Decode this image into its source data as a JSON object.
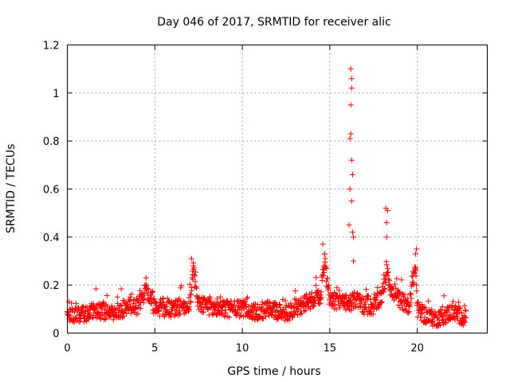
{
  "chart_data": {
    "type": "scatter",
    "title": "Day 046 of 2017, SRMTID for receiver alic",
    "xlabel": "GPS time / hours",
    "ylabel": "SRMTID / TECUs",
    "xlim": [
      0,
      24
    ],
    "ylim": [
      0,
      1.2
    ],
    "x_ticks": [
      0,
      5,
      10,
      15,
      20
    ],
    "x_tick_labels": [
      "0",
      "5",
      "10",
      "15",
      "20"
    ],
    "y_ticks": [
      0,
      0.2,
      0.4,
      0.6,
      0.8,
      1.0,
      1.2
    ],
    "y_tick_labels": [
      "0",
      "0.2",
      "0.4",
      "0.6",
      "0.8",
      "1",
      "1.2"
    ],
    "grid": true,
    "marker": "+",
    "series": [
      {
        "name": "SRMTID",
        "color": "#ff0000",
        "baseline_points": [
          [
            0.0,
            0.08
          ],
          [
            0.5,
            0.07
          ],
          [
            1.0,
            0.08
          ],
          [
            1.5,
            0.09
          ],
          [
            2.0,
            0.09
          ],
          [
            2.5,
            0.08
          ],
          [
            3.0,
            0.09
          ],
          [
            3.5,
            0.12
          ],
          [
            4.0,
            0.11
          ],
          [
            4.5,
            0.18
          ],
          [
            5.0,
            0.1
          ],
          [
            5.5,
            0.1
          ],
          [
            6.0,
            0.1
          ],
          [
            6.5,
            0.11
          ],
          [
            7.0,
            0.12
          ],
          [
            7.2,
            0.26
          ],
          [
            7.5,
            0.12
          ],
          [
            8.0,
            0.11
          ],
          [
            8.5,
            0.11
          ],
          [
            9.0,
            0.1
          ],
          [
            9.5,
            0.1
          ],
          [
            10.0,
            0.1
          ],
          [
            10.5,
            0.09
          ],
          [
            11.0,
            0.09
          ],
          [
            11.5,
            0.1
          ],
          [
            12.0,
            0.09
          ],
          [
            12.5,
            0.08
          ],
          [
            13.0,
            0.1
          ],
          [
            13.5,
            0.12
          ],
          [
            14.0,
            0.14
          ],
          [
            14.5,
            0.16
          ],
          [
            14.7,
            0.3
          ],
          [
            15.0,
            0.14
          ],
          [
            15.5,
            0.13
          ],
          [
            16.0,
            0.12
          ],
          [
            16.5,
            0.14
          ],
          [
            17.0,
            0.11
          ],
          [
            17.5,
            0.11
          ],
          [
            18.0,
            0.16
          ],
          [
            18.3,
            0.27
          ],
          [
            18.5,
            0.17
          ],
          [
            19.0,
            0.14
          ],
          [
            19.5,
            0.11
          ],
          [
            19.9,
            0.28
          ],
          [
            20.0,
            0.1
          ],
          [
            20.5,
            0.07
          ],
          [
            21.0,
            0.06
          ],
          [
            21.5,
            0.07
          ],
          [
            22.0,
            0.09
          ],
          [
            22.5,
            0.07
          ],
          [
            22.8,
            0.06
          ]
        ],
        "spike_points": [
          [
            16.1,
            0.45
          ],
          [
            16.15,
            0.6
          ],
          [
            16.15,
            0.81
          ],
          [
            16.2,
            0.83
          ],
          [
            16.2,
            0.95
          ],
          [
            16.25,
            1.02
          ],
          [
            16.25,
            1.06
          ],
          [
            16.2,
            1.1
          ],
          [
            16.25,
            0.72
          ],
          [
            16.3,
            0.66
          ],
          [
            16.25,
            0.55
          ],
          [
            16.3,
            0.42
          ],
          [
            16.35,
            0.4
          ],
          [
            16.35,
            0.3
          ],
          [
            18.2,
            0.52
          ],
          [
            18.25,
            0.46
          ],
          [
            18.25,
            0.4
          ],
          [
            18.3,
            0.51
          ],
          [
            19.9,
            0.33
          ],
          [
            19.95,
            0.35
          ],
          [
            19.9,
            0.26
          ],
          [
            14.6,
            0.37
          ],
          [
            14.7,
            0.33
          ],
          [
            7.1,
            0.31
          ],
          [
            7.2,
            0.28
          ],
          [
            4.5,
            0.23
          ]
        ]
      }
    ]
  }
}
